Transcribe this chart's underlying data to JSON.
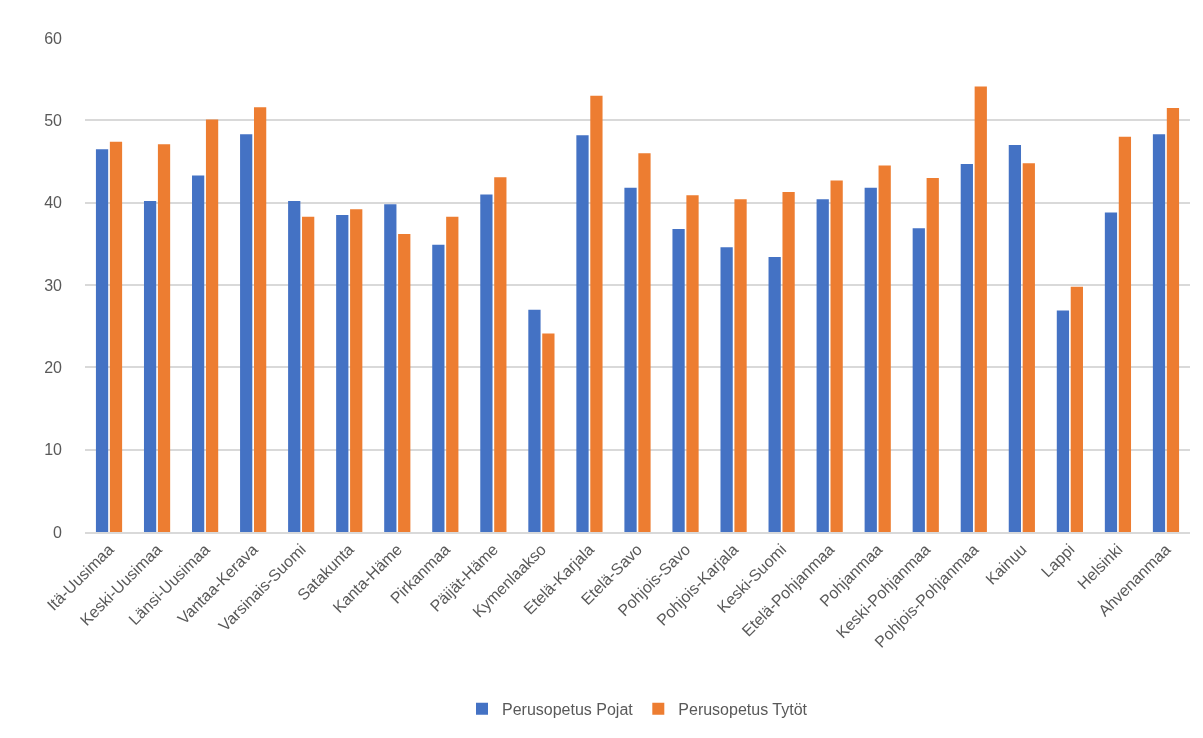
{
  "chart_data": {
    "type": "bar",
    "categories": [
      "Itä-Uusimaa",
      "Keski-Uusimaa",
      "Länsi-Uusimaa",
      "Vantaa-Kerava",
      "Varsinais-Suomi",
      "Satakunta",
      "Kanta-Häme",
      "Pirkanmaa",
      "Päijät-Häme",
      "Kymenlaakso",
      "Etelä-Karjala",
      "Etelä-Savo",
      "Pohjois-Savo",
      "Pohjois-Karjala",
      "Keski-Suomi",
      "Etelä-Pohjanmaa",
      "Pohjanmaa",
      "Keski-Pohjanmaa",
      "Pohjois-Pohjanmaa",
      "Kainuu",
      "Lappi",
      "Helsinki",
      "Ahvenanmaa"
    ],
    "series": [
      {
        "name": "Perusopetus Pojat",
        "color": "#4472c4",
        "values": [
          46.5,
          40.2,
          43.3,
          48.3,
          40.2,
          38.5,
          39.8,
          34.9,
          41.0,
          27.0,
          48.2,
          41.8,
          36.8,
          34.6,
          33.4,
          40.4,
          41.8,
          36.9,
          44.7,
          47.0,
          26.9,
          38.8,
          48.3
        ]
      },
      {
        "name": "Perusopetus Tytöt",
        "color": "#ed7d31",
        "values": [
          47.4,
          47.1,
          50.1,
          51.6,
          38.3,
          39.2,
          36.2,
          38.3,
          43.1,
          24.1,
          53.0,
          46.0,
          40.9,
          40.4,
          41.3,
          42.7,
          44.5,
          43.0,
          54.1,
          44.8,
          29.8,
          48.0,
          51.5
        ]
      }
    ],
    "ylim": [
      0,
      60
    ],
    "yticks": [
      0,
      10,
      20,
      30,
      40,
      50,
      60
    ],
    "grid": "y",
    "legend": "bottom"
  }
}
